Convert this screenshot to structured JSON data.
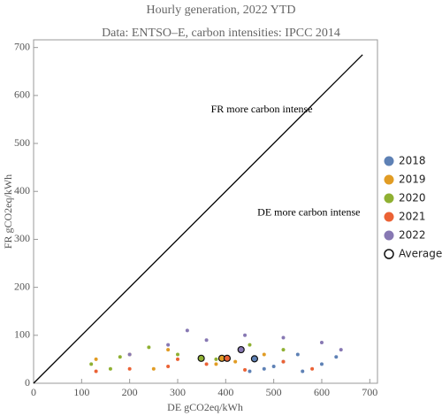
{
  "chart_data": {
    "type": "scatter",
    "title": "Hourly generation, 2022 YTD",
    "subtitle": "Data: ENTSO–E, carbon intensities: IPCC 2014",
    "x_label": "DE gCO2eq/kWh",
    "y_label": "FR gCO2eq/kWh",
    "xlim": [
      0,
      716
    ],
    "ylim": [
      0,
      716
    ],
    "xticks": [
      0,
      100,
      200,
      300,
      400,
      500,
      600,
      700
    ],
    "yticks": [
      0,
      100,
      200,
      300,
      400,
      500,
      600,
      700
    ],
    "reference_line": {
      "x": [
        0,
        685
      ],
      "y": [
        0,
        685
      ],
      "color": "#000000"
    },
    "annotations": [
      {
        "text": "FR more carbon intense",
        "x": 475,
        "y": 570
      },
      {
        "text": "DE more carbon intense",
        "x": 573,
        "y": 355
      }
    ],
    "average_label": "Average",
    "legend": "right",
    "series": [
      {
        "name": "2018",
        "color": "#5e81b5",
        "x": [
          480,
          520,
          560,
          600,
          630,
          550,
          500,
          450
        ],
        "y": [
          30,
          45,
          25,
          40,
          55,
          60,
          35,
          25
        ],
        "average": [
          460,
          51
        ]
      },
      {
        "name": "2019",
        "color": "#e19c24",
        "x": [
          130,
          200,
          280,
          350,
          420,
          480,
          250,
          380
        ],
        "y": [
          50,
          60,
          70,
          55,
          45,
          60,
          30,
          40
        ],
        "average": [
          392,
          52
        ]
      },
      {
        "name": "2020",
        "color": "#8fb032",
        "x": [
          120,
          180,
          240,
          300,
          380,
          450,
          520,
          160
        ],
        "y": [
          40,
          55,
          75,
          60,
          50,
          80,
          70,
          30
        ],
        "average": [
          349,
          52
        ]
      },
      {
        "name": "2021",
        "color": "#eb6235",
        "x": [
          130,
          200,
          280,
          360,
          440,
          520,
          580,
          300
        ],
        "y": [
          25,
          30,
          35,
          40,
          28,
          45,
          30,
          50
        ],
        "average": [
          403,
          52
        ]
      },
      {
        "name": "2022",
        "color": "#8778b3",
        "x": [
          200,
          280,
          360,
          440,
          520,
          600,
          640,
          320
        ],
        "y": [
          60,
          80,
          90,
          100,
          95,
          85,
          70,
          110
        ],
        "average": [
          432,
          70
        ]
      }
    ]
  }
}
